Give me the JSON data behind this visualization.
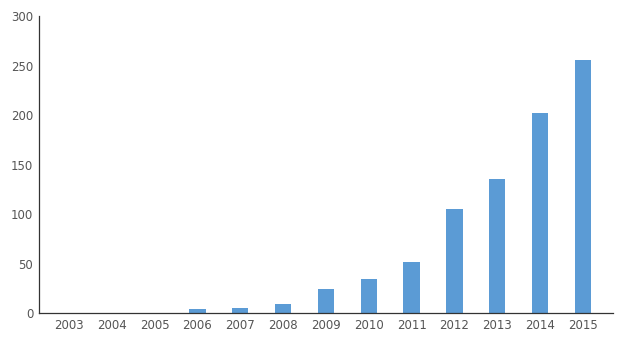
{
  "years": [
    2003,
    2004,
    2005,
    2006,
    2007,
    2008,
    2009,
    2010,
    2011,
    2012,
    2013,
    2014,
    2015
  ],
  "values": [
    0,
    0,
    0,
    4,
    5,
    9,
    25,
    35,
    52,
    105,
    136,
    202,
    256
  ],
  "bar_color": "#5B9BD5",
  "background_color": "#FFFFFF",
  "ylim": [
    0,
    300
  ],
  "yticks": [
    0,
    50,
    100,
    150,
    200,
    250,
    300
  ],
  "spine_color": "#333333",
  "tick_color": "#555555",
  "tick_fontsize": 8.5,
  "bar_width": 0.38
}
